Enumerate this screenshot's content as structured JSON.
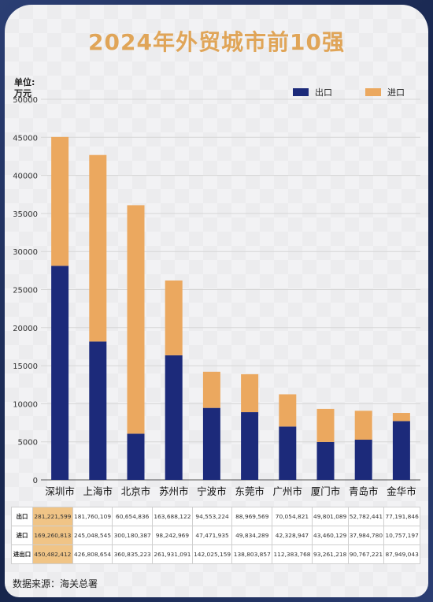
{
  "title": "2024年外贸城市前10强",
  "unit_line1": "单位:",
  "unit_line2": "万元",
  "source": "数据来源：海关总署",
  "colors": {
    "export": "#1c2a7a",
    "import": "#eba85f",
    "title": "#e0a558",
    "highlight": "#f0c486"
  },
  "chart_data": {
    "type": "bar",
    "stacked": true,
    "categories": [
      "深圳市",
      "上海市",
      "北京市",
      "苏州市",
      "宁波市",
      "东莞市",
      "广州市",
      "厦门市",
      "青岛市",
      "金华市"
    ],
    "series": [
      {
        "name": "出口",
        "values": [
          28122.16,
          18176.01,
          6065.48,
          16368.81,
          9455.32,
          8896.96,
          7005.48,
          4980.11,
          5278.24,
          7719.18
        ]
      },
      {
        "name": "进口",
        "values": [
          16926.08,
          24504.85,
          30018.04,
          9824.3,
          4747.19,
          4983.43,
          4232.89,
          4346.01,
          3798.48,
          1075.72
        ]
      }
    ],
    "ylim": [
      0,
      50000
    ],
    "yticks": [
      0,
      5000,
      10000,
      15000,
      20000,
      25000,
      30000,
      35000,
      40000,
      45000,
      50000
    ],
    "legend_position": "top-right",
    "grid": true
  },
  "table": {
    "rows": [
      {
        "label": "出口",
        "values": [
          "281,221,599",
          "181,760,109",
          "60,654,836",
          "163,688,122",
          "94,553,224",
          "88,969,569",
          "70,054,821",
          "49,801,089",
          "52,782,441",
          "77,191,846"
        ]
      },
      {
        "label": "进口",
        "values": [
          "169,260,813",
          "245,048,545",
          "300,180,387",
          "98,242,969",
          "47,471,935",
          "49,834,289",
          "42,328,947",
          "43,460,129",
          "37,984,780",
          "10,757,197"
        ]
      },
      {
        "label": "进出口",
        "values": [
          "450,482,412",
          "426,808,654",
          "360,835,223",
          "261,931,091",
          "142,025,159",
          "138,803,857",
          "112,383,768",
          "93,261,218",
          "90,767,221",
          "87,949,043"
        ]
      }
    ]
  }
}
